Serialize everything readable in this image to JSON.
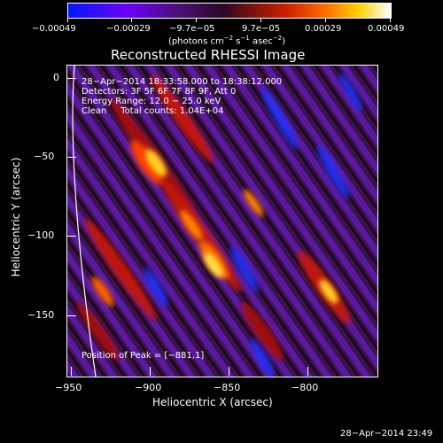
{
  "colorbar": {
    "tick_labels": [
      "−0.00049",
      "−0.00029",
      "−9.7e−05",
      "9.7e−05",
      "0.00029",
      "0.00049"
    ],
    "units_prefix": "(photons cm",
    "units_exp1": "−2",
    "units_mid1": " s",
    "units_exp2": "−1",
    "units_mid2": " asec",
    "units_exp3": "−2",
    "units_suffix": ")",
    "colors": [
      "#0000ff",
      "#7f00ff",
      "#3a0f5f",
      "#7f1010",
      "#ff2000",
      "#ff8000",
      "#ffff40",
      "#ffffff"
    ]
  },
  "plot": {
    "title": "Reconstructed RHESSI Image",
    "xlabel": "Heliocentric X (arcsec)",
    "ylabel": "Heliocentric Y (arcsec)",
    "x_ticks": [
      "−950",
      "−900",
      "−850",
      "−800"
    ],
    "y_ticks": [
      "0",
      "−50",
      "−100",
      "−150"
    ],
    "info_lines": [
      "28−Apr−2014 18:33:58.000 to 18:38:12.000",
      "Detectors: 3F 5F 6F 7F 8F 9F, Att 0",
      "Energy Range: 12.0 − 25.0 keV",
      "Clean     Total counts: 1.04E+04"
    ],
    "peak_label": "Position of Peak = [−881,1]"
  },
  "footer": {
    "timestamp": "28−Apr−2014 23:49"
  }
}
